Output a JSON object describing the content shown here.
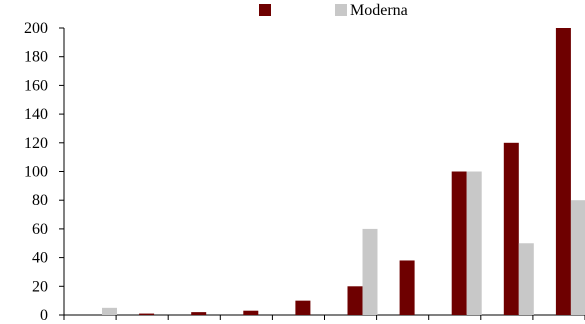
{
  "chart_data": {
    "type": "bar",
    "title": "",
    "xlabel": "",
    "ylabel": "",
    "categories": [
      "",
      "",
      "",
      "",
      "",
      "",
      "",
      "",
      "",
      ""
    ],
    "series": [
      {
        "name": "",
        "color": "#6e0000",
        "values": [
          0,
          1,
          2,
          3,
          10,
          20,
          38,
          100,
          120,
          200
        ]
      },
      {
        "name": "Moderna",
        "color": "#c8c8c8",
        "values": [
          5,
          0,
          0,
          0,
          0,
          60,
          0,
          100,
          50,
          80
        ]
      }
    ],
    "ylim": [
      0,
      200
    ],
    "yticks": [
      0,
      20,
      40,
      60,
      80,
      100,
      120,
      140,
      160,
      180,
      200
    ],
    "grid": false,
    "legend_position": "top"
  }
}
